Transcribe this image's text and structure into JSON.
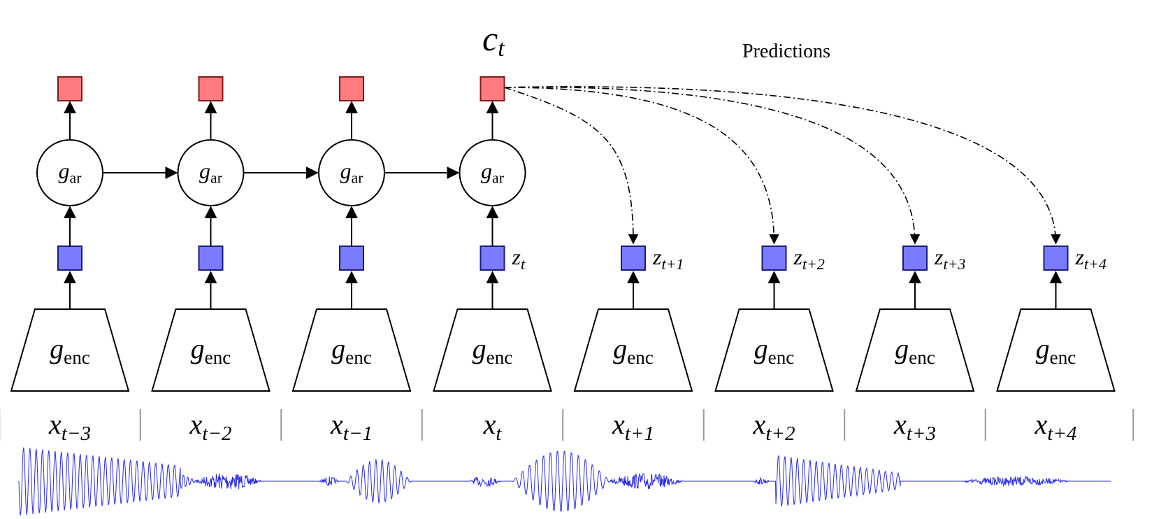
{
  "title": {
    "symbol": "c",
    "subscript": "t"
  },
  "predictions_label": "Predictions",
  "colors": {
    "context": "#ff7b80",
    "latent": "#7b7bff",
    "waveform": "#2a2ae8"
  },
  "ar_label": {
    "symbol": "g",
    "subscript": "ar"
  },
  "enc_label": {
    "symbol": "g",
    "subscript": "enc"
  },
  "columns": [
    {
      "x_sub": "t−3",
      "z_sub": "",
      "has_ar": true
    },
    {
      "x_sub": "t−2",
      "z_sub": "",
      "has_ar": true
    },
    {
      "x_sub": "t−1",
      "z_sub": "",
      "has_ar": true
    },
    {
      "x_sub": "t",
      "z_sub": "t",
      "has_ar": true
    },
    {
      "x_sub": "t+1",
      "z_sub": "t+1",
      "has_ar": false
    },
    {
      "x_sub": "t+2",
      "z_sub": "t+2",
      "has_ar": false
    },
    {
      "x_sub": "t+3",
      "z_sub": "t+3",
      "has_ar": false
    },
    {
      "x_sub": "t+4",
      "z_sub": "t+4",
      "has_ar": false
    }
  ]
}
